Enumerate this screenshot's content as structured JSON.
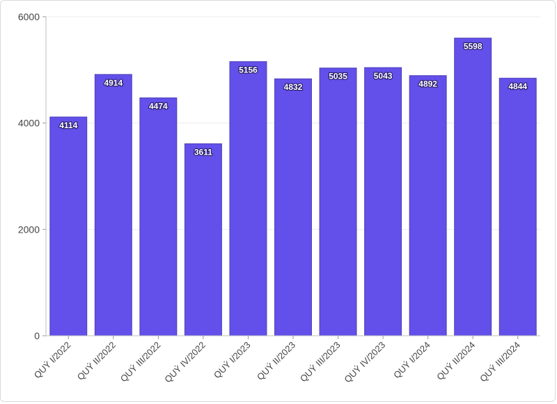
{
  "chart_data": {
    "type": "bar",
    "categories": [
      "QUÝ I/2022",
      "QUÝ II/2022",
      "QUÝ III/2022",
      "QUÝ IV/2022",
      "QUÝ I/2023",
      "QUÝ II/2023",
      "QUÝ III/2023",
      "QUÝ IV/2023",
      "QUÝ I/2024",
      "QUÝ II/2024",
      "QUÝ III/2024"
    ],
    "values": [
      4114,
      4914,
      4474,
      3611,
      5156,
      4832,
      5035,
      5043,
      4892,
      5598,
      4844
    ],
    "title": "",
    "xlabel": "",
    "ylabel": "",
    "ylim": [
      0,
      6000
    ],
    "yticks": [
      0,
      2000,
      4000,
      6000
    ],
    "grid": true,
    "data_labels": true,
    "colors": {
      "bar": "#6350ea",
      "bar_border": "#4a3fb8",
      "grid": "#ececec"
    }
  }
}
